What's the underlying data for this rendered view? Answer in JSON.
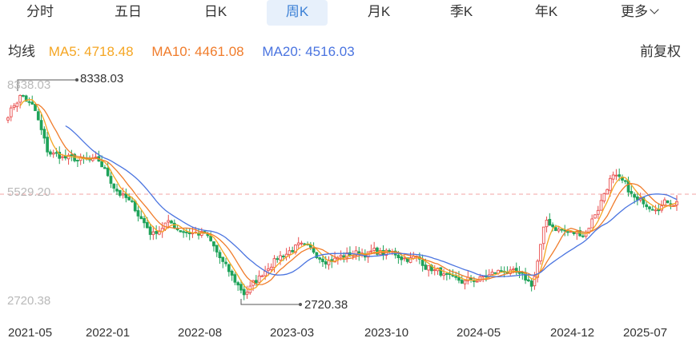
{
  "tabs": [
    {
      "label": "分时",
      "active": false
    },
    {
      "label": "五日",
      "active": false
    },
    {
      "label": "日K",
      "active": false
    },
    {
      "label": "周K",
      "active": true
    },
    {
      "label": "月K",
      "active": false
    },
    {
      "label": "季K",
      "active": false
    },
    {
      "label": "年K",
      "active": false
    },
    {
      "label": "更多",
      "active": false
    }
  ],
  "ma_title": "均线",
  "ma": [
    {
      "label": "MA5: 4718.48",
      "color": "#f5a623"
    },
    {
      "label": "MA10: 4461.08",
      "color": "#f07c2b"
    },
    {
      "label": "MA20: 4516.03",
      "color": "#4a74e0"
    }
  ],
  "adjust_label": "前复权",
  "colors": {
    "up": "#e94e4e",
    "down": "#1fa35a",
    "active_tab": "#3a7fd5",
    "ref_line": "#f3a3a3"
  },
  "chart_data": {
    "type": "line",
    "y_axis_labels": [
      "8338.03",
      "5529.20",
      "2720.38"
    ],
    "ylim": [
      2720.38,
      8338.03
    ],
    "reference_line": 5529.2,
    "max_annotation": "8338.03",
    "min_annotation": "2720.38",
    "x_labels": [
      "2021-05",
      "2022-01",
      "2022-08",
      "2023-03",
      "2023-10",
      "2024-05",
      "2024-12",
      "2025-07"
    ],
    "anchors": [
      [
        "2021-05",
        7600
      ],
      [
        "2021-06",
        8100
      ],
      [
        "2021-07",
        7700
      ],
      [
        "2021-08",
        6600
      ],
      [
        "2021-10",
        6400
      ],
      [
        "2021-12",
        6300
      ],
      [
        "2022-01",
        5800
      ],
      [
        "2022-03",
        5000
      ],
      [
        "2022-04",
        4500
      ],
      [
        "2022-05",
        4800
      ],
      [
        "2022-06",
        4650
      ],
      [
        "2022-08",
        4500
      ],
      [
        "2022-10",
        3400
      ],
      [
        "2022-11",
        3000
      ],
      [
        "2022-12",
        3300
      ],
      [
        "2023-01",
        3800
      ],
      [
        "2023-03",
        4200
      ],
      [
        "2023-04",
        4000
      ],
      [
        "2023-06",
        3900
      ],
      [
        "2023-08",
        4050
      ],
      [
        "2023-10",
        4000
      ],
      [
        "2023-12",
        3900
      ],
      [
        "2024-02",
        3500
      ],
      [
        "2024-03",
        3200
      ],
      [
        "2024-05",
        3350
      ],
      [
        "2024-07",
        3600
      ],
      [
        "2024-08",
        3350
      ],
      [
        "2024-09",
        3200
      ],
      [
        "2024-10",
        4800
      ],
      [
        "2024-12",
        4500
      ],
      [
        "2025-01",
        4550
      ],
      [
        "2025-02",
        5200
      ],
      [
        "2025-03",
        6000
      ],
      [
        "2025-04",
        5700
      ],
      [
        "2025-05",
        5300
      ],
      [
        "2025-06",
        5300
      ],
      [
        "2025-07",
        5350
      ],
      [
        "2025-08",
        5380
      ]
    ]
  }
}
